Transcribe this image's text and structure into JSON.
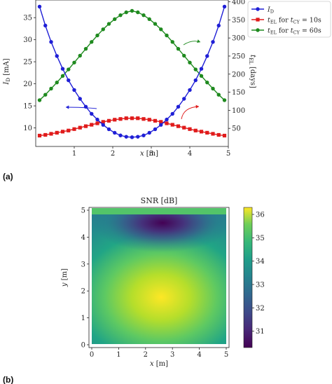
{
  "panel_labels": {
    "a": "(a)",
    "b": "(b)"
  },
  "chart_data": [
    {
      "type": "line",
      "x": [
        0.1,
        0.25,
        0.4,
        0.55,
        0.7,
        0.85,
        1.0,
        1.15,
        1.3,
        1.45,
        1.6,
        1.75,
        1.9,
        2.05,
        2.2,
        2.35,
        2.5,
        2.65,
        2.8,
        2.95,
        3.1,
        3.25,
        3.4,
        3.55,
        3.7,
        3.85,
        4.0,
        4.15,
        4.3,
        4.45,
        4.6,
        4.75,
        4.9
      ],
      "xlabel": "x [m]",
      "xlim": [
        0,
        5
      ],
      "xticks": [
        "1",
        "2",
        "3",
        "4",
        "5"
      ],
      "ylabel_left": "I_D [mA]",
      "ylim_left": [
        5.8,
        39
      ],
      "yticks_left": [
        "10",
        "15",
        "20",
        "25",
        "30",
        "35"
      ],
      "ylabel_right": "t_EL [days]",
      "ylim_right": [
        0,
        405
      ],
      "yticks_right": [
        "50",
        "100",
        "150",
        "200",
        "250",
        "300",
        "350",
        "400"
      ],
      "series": [
        {
          "name": "I_D",
          "axis": "left",
          "color": "#1f1fd6",
          "marker": "circle",
          "values": [
            37.5,
            33.2,
            29.5,
            26.3,
            23.4,
            20.8,
            18.6,
            16.6,
            14.8,
            13.2,
            11.9,
            10.7,
            9.7,
            8.9,
            8.3,
            8.0,
            7.9,
            8.0,
            8.3,
            8.9,
            9.7,
            10.7,
            11.9,
            13.2,
            14.8,
            16.6,
            18.6,
            20.8,
            23.4,
            26.3,
            29.5,
            33.2,
            37.5
          ]
        },
        {
          "name": "t_EL for t_CY = 10s",
          "axis": "right",
          "color": "#e01b1b",
          "marker": "square",
          "values": [
            30,
            32,
            35,
            38,
            41,
            44,
            48,
            52,
            56,
            60,
            64,
            68,
            71,
            74,
            76,
            78,
            78,
            78,
            76,
            74,
            71,
            68,
            64,
            60,
            56,
            52,
            48,
            44,
            41,
            38,
            35,
            32,
            30
          ]
        },
        {
          "name": "t_EL for t_CY = 60s",
          "axis": "right",
          "color": "#1f8a1f",
          "marker": "circle",
          "values": [
            128,
            143,
            160,
            177,
            195,
            213,
            232,
            251,
            270,
            289,
            307,
            324,
            339,
            352,
            363,
            371,
            375,
            371,
            363,
            352,
            339,
            324,
            307,
            289,
            270,
            251,
            232,
            213,
            195,
            177,
            160,
            143,
            128
          ]
        }
      ],
      "legend": {
        "location": "top-right",
        "entries": [
          {
            "math": "I",
            "sub": "D",
            "rest": ""
          },
          {
            "math": "t",
            "sub": "EL",
            "rest": " for ",
            "math2": "t",
            "sub2": "CY",
            "rest2": " = 10s"
          },
          {
            "math": "t",
            "sub": "EL",
            "rest": " for ",
            "math2": "t",
            "sub2": "CY",
            "rest2": " = 60s"
          }
        ]
      },
      "annotations": [
        {
          "kind": "arrow",
          "color": "#1f1fd6",
          "direction": "left"
        },
        {
          "kind": "arrow",
          "color": "#e01b1b",
          "direction": "right"
        },
        {
          "kind": "arrow",
          "color": "#1f8a1f",
          "direction": "right"
        }
      ]
    },
    {
      "type": "heatmap",
      "title": "SNR [dB]",
      "xlabel": "x [m]",
      "ylabel": "y [m]",
      "xlim": [
        0,
        5
      ],
      "ylim": [
        0,
        5
      ],
      "xticks": [
        "0",
        "1",
        "2",
        "3",
        "4",
        "5"
      ],
      "yticks": [
        "0",
        "1",
        "2",
        "3",
        "4",
        "5"
      ],
      "colorbar": {
        "range": [
          30.3,
          36.3
        ],
        "ticks": [
          "31",
          "32",
          "33",
          "34",
          "35",
          "36"
        ],
        "colormap": "viridis"
      },
      "features": {
        "maximum": {
          "x": 2.4,
          "y": 1.7,
          "value": 36.2
        },
        "minimum": {
          "x": 2.5,
          "y": 4.45,
          "value": 30.4
        },
        "top_strip_value": 34.6
      }
    }
  ]
}
